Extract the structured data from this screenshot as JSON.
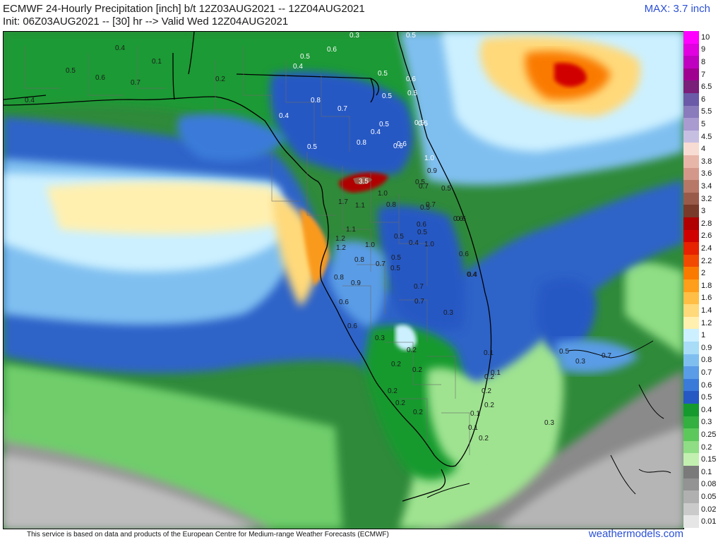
{
  "header": {
    "title": "ECMWF 24-Hourly Precipitation [inch] b/t 12Z03AUG2021 -- 12Z04AUG2021",
    "subtitle": "Init: 06Z03AUG2021 -- [30] hr --> Valid Wed 12Z04AUG2021",
    "max_label": "MAX: 3.7 inch"
  },
  "footer": {
    "disclaimer": "This service is based on data and products of the European Centre for Medium-range Weather Forecasts (ECMWF)",
    "credit": "weathermodels.com"
  },
  "colorbar": {
    "levels": [
      {
        "label": "10",
        "color": "#ff00ff"
      },
      {
        "label": "9",
        "color": "#e000e0"
      },
      {
        "label": "8",
        "color": "#c000c0"
      },
      {
        "label": "7",
        "color": "#a00090"
      },
      {
        "label": "6.5",
        "color": "#7a1f7a"
      },
      {
        "label": "6",
        "color": "#6b5aa8"
      },
      {
        "label": "5.5",
        "color": "#8a7bbd"
      },
      {
        "label": "5",
        "color": "#a99bd0"
      },
      {
        "label": "4.5",
        "color": "#c7bfe2"
      },
      {
        "label": "4",
        "color": "#f7dcd3"
      },
      {
        "label": "3.8",
        "color": "#e8b6a8"
      },
      {
        "label": "3.6",
        "color": "#d4988a"
      },
      {
        "label": "3.4",
        "color": "#b77868"
      },
      {
        "label": "3.2",
        "color": "#9a5a4a"
      },
      {
        "label": "3",
        "color": "#7a3a2a"
      },
      {
        "label": "2.8",
        "color": "#b00000"
      },
      {
        "label": "2.6",
        "color": "#d10000"
      },
      {
        "label": "2.4",
        "color": "#e62200"
      },
      {
        "label": "2.2",
        "color": "#f24a00"
      },
      {
        "label": "2",
        "color": "#fa7a00"
      },
      {
        "label": "1.8",
        "color": "#ff9e1a"
      },
      {
        "label": "1.6",
        "color": "#ffbe45"
      },
      {
        "label": "1.4",
        "color": "#ffd97a"
      },
      {
        "label": "1.2",
        "color": "#fff0b0"
      },
      {
        "label": "1",
        "color": "#ccf0ff"
      },
      {
        "label": "0.9",
        "color": "#a8dcf7"
      },
      {
        "label": "0.8",
        "color": "#7fbff0"
      },
      {
        "label": "0.7",
        "color": "#5a9ce6"
      },
      {
        "label": "0.6",
        "color": "#3a7ad9"
      },
      {
        "label": "0.5",
        "color": "#2658c4"
      },
      {
        "label": "0.4",
        "color": "#159a2e"
      },
      {
        "label": "0.3",
        "color": "#33b03f"
      },
      {
        "label": "0.25",
        "color": "#5cc85c"
      },
      {
        "label": "0.2",
        "color": "#8fdd84"
      },
      {
        "label": "0.15",
        "color": "#c2f0b0"
      },
      {
        "label": "0.1",
        "color": "#7a7a7a"
      },
      {
        "label": "0.08",
        "color": "#939393"
      },
      {
        "label": "0.05",
        "color": "#b0b0b0"
      },
      {
        "label": "0.02",
        "color": "#cacaca"
      },
      {
        "label": "0.01",
        "color": "#e6e6e6"
      }
    ]
  },
  "map": {
    "value_labels": [
      "0.4",
      "0.5",
      "0.6",
      "0.7",
      "0.4",
      "0.2",
      "0.1",
      "0.3",
      "0.5",
      "0.6",
      "0.5",
      "0.4",
      "0.5",
      "0.6",
      "0.5",
      "0.5",
      "0.7",
      "0.8",
      "0.4",
      "0.5",
      "0.4",
      "0.6",
      "0.5",
      "0.5",
      "0.5",
      "0.8",
      "0.6",
      "1.0",
      "3.5",
      "1.0",
      "0.9",
      "0.7",
      "1.7",
      "1.1",
      "0.8",
      "0.5",
      "0.5",
      "1.1",
      "0.6",
      "0.6",
      "1.2",
      "0.5",
      "0.4",
      "1.0",
      "1.2",
      "0.5",
      "0.6",
      "1.0",
      "0.8",
      "0.7",
      "0.5",
      "0.4",
      "0.9",
      "0.8",
      "0.6",
      "0.7",
      "0.7",
      "0.3",
      "0.6",
      "0.3",
      "0.2",
      "0.2",
      "0.2",
      "0.2",
      "0.2",
      "0.2",
      "0.1",
      "0.1",
      "0.2",
      "0.2",
      "0.2",
      "0.1",
      "0.1",
      "0.2",
      "0.5",
      "0.7",
      "0.3",
      "0.3",
      "0.6",
      "0.5",
      "0.5",
      "0.7",
      "0.4"
    ]
  }
}
